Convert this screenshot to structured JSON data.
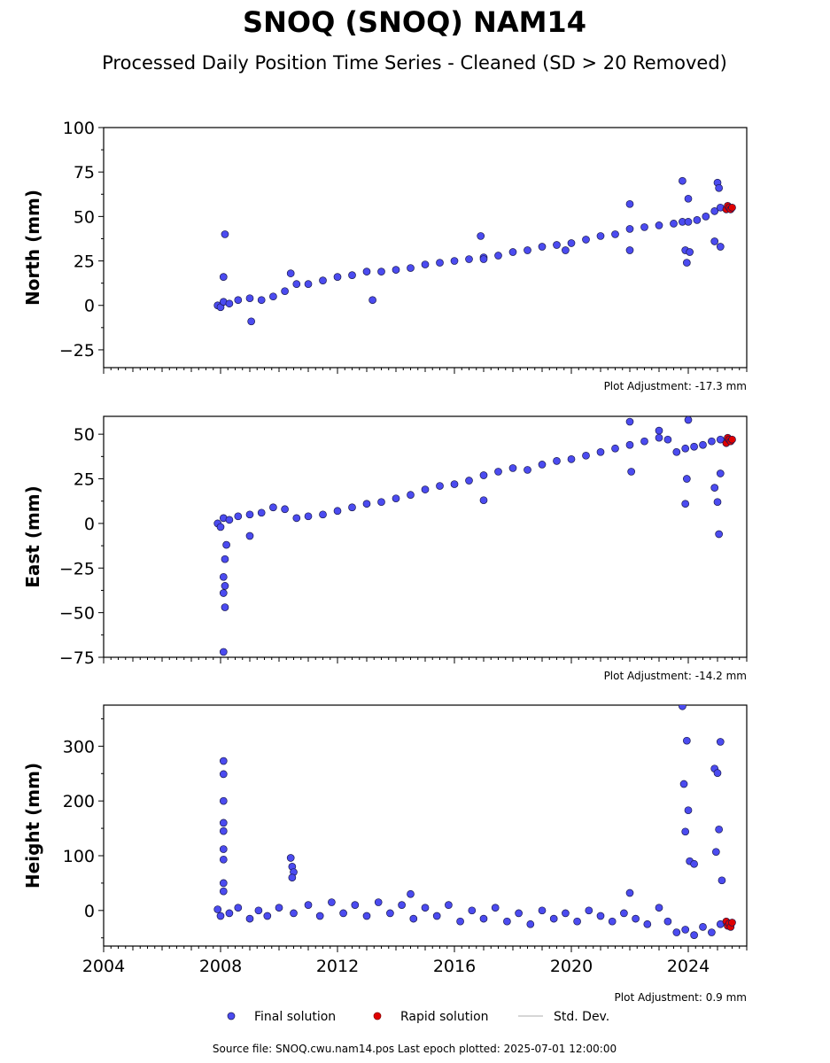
{
  "title": "SNOQ (SNOQ) NAM14",
  "subtitle": "Processed Daily Position Time Series - Cleaned (SD > 20 Removed)",
  "footer": "Source file: SNOQ.cwu.nam14.pos  Last epoch plotted: 2025-07-01 12:00:00",
  "colors": {
    "final": "#4b4bf0",
    "final_edge": "#1a1a50",
    "rapid": "#e00000",
    "std": "#c8c8c8"
  },
  "legend": [
    {
      "key": "final",
      "label": "Final solution"
    },
    {
      "key": "rapid",
      "label": "Rapid solution"
    },
    {
      "key": "std",
      "label": "Std. Dev."
    }
  ],
  "chart_data": [
    {
      "type": "scatter",
      "ylabel": "North (mm)",
      "ylim": [
        -35,
        100
      ],
      "yticks": [
        -25,
        0,
        25,
        50,
        75,
        100
      ],
      "xlim": [
        2004,
        2026
      ],
      "xticks": [
        2004,
        2008,
        2012,
        2016,
        2020,
        2024
      ],
      "show_xtick_labels": false,
      "adjustment": "Plot Adjustment: -17.3 mm",
      "series": [
        {
          "solution": "final",
          "x": [
            2007.9,
            2008.0,
            2008.1,
            2008.3,
            2008.6,
            2009.0,
            2009.4,
            2009.8,
            2010.2,
            2010.4,
            2010.6,
            2011.0,
            2011.5,
            2012.0,
            2012.5,
            2013.0,
            2013.5,
            2014.0,
            2014.5,
            2015.0,
            2015.5,
            2016.0,
            2016.5,
            2017.0,
            2017.5,
            2018.0,
            2018.5,
            2019.0,
            2019.5,
            2020.0,
            2020.5,
            2021.0,
            2021.5,
            2022.0,
            2022.5,
            2023.0,
            2023.5,
            2023.8,
            2024.0,
            2024.3,
            2024.6,
            2024.9,
            2025.1
          ],
          "y": [
            0,
            -1,
            2,
            1,
            3,
            4,
            3,
            5,
            8,
            18,
            12,
            12,
            14,
            16,
            17,
            19,
            19,
            20,
            21,
            23,
            24,
            25,
            26,
            27,
            28,
            30,
            31,
            33,
            34,
            35,
            37,
            39,
            40,
            43,
            44,
            45,
            46,
            47,
            47,
            48,
            50,
            53,
            55
          ]
        },
        {
          "solution": "final_outliers",
          "x": [
            2008.15,
            2008.1,
            2009.05,
            2013.2,
            2016.9,
            2017.0,
            2019.8,
            2022.0,
            2022.0,
            2023.8,
            2023.9,
            2023.95,
            2024.0,
            2024.05,
            2024.9,
            2025.0,
            2025.05,
            2025.1
          ],
          "y": [
            40,
            16,
            -9,
            3,
            39,
            26,
            31,
            57,
            31,
            70,
            31,
            24,
            60,
            30,
            36,
            69,
            66,
            33
          ]
        },
        {
          "solution": "rapid",
          "x": [
            2025.3,
            2025.35,
            2025.4,
            2025.45,
            2025.5
          ],
          "y": [
            54,
            56,
            55,
            54,
            55
          ]
        }
      ]
    },
    {
      "type": "scatter",
      "ylabel": "East (mm)",
      "ylim": [
        -75,
        60
      ],
      "yticks": [
        -75,
        -50,
        -25,
        0,
        25,
        50
      ],
      "xlim": [
        2004,
        2026
      ],
      "xticks": [
        2004,
        2008,
        2012,
        2016,
        2020,
        2024
      ],
      "show_xtick_labels": false,
      "adjustment": "Plot Adjustment: -14.2 mm",
      "series": [
        {
          "solution": "final",
          "x": [
            2007.9,
            2008.0,
            2008.1,
            2008.3,
            2008.6,
            2009.0,
            2009.4,
            2009.8,
            2010.2,
            2010.6,
            2011.0,
            2011.5,
            2012.0,
            2012.5,
            2013.0,
            2013.5,
            2014.0,
            2014.5,
            2015.0,
            2015.5,
            2016.0,
            2016.5,
            2017.0,
            2017.5,
            2018.0,
            2018.5,
            2019.0,
            2019.5,
            2020.0,
            2020.5,
            2021.0,
            2021.5,
            2022.0,
            2022.5,
            2023.0,
            2023.3,
            2023.6,
            2023.9,
            2024.2,
            2024.5,
            2024.8,
            2025.1
          ],
          "y": [
            0,
            -2,
            3,
            2,
            4,
            5,
            6,
            9,
            8,
            3,
            4,
            5,
            7,
            9,
            11,
            12,
            14,
            16,
            19,
            21,
            22,
            24,
            27,
            29,
            31,
            30,
            33,
            35,
            36,
            38,
            40,
            42,
            44,
            46,
            48,
            47,
            40,
            42,
            43,
            44,
            46,
            47
          ]
        },
        {
          "solution": "final_outliers",
          "x": [
            2008.1,
            2008.15,
            2008.1,
            2008.15,
            2008.1,
            2008.15,
            2008.2,
            2009.0,
            2017.0,
            2022.0,
            2022.05,
            2023.0,
            2023.9,
            2023.95,
            2024.0,
            2024.9,
            2025.0,
            2025.05,
            2025.1
          ],
          "y": [
            -72,
            -47,
            -39,
            -35,
            -30,
            -20,
            -12,
            -7,
            13,
            57,
            29,
            52,
            11,
            25,
            58,
            20,
            12,
            -6,
            28
          ]
        },
        {
          "solution": "rapid",
          "x": [
            2025.3,
            2025.35,
            2025.4,
            2025.45,
            2025.5
          ],
          "y": [
            45,
            48,
            47,
            46,
            47
          ]
        }
      ]
    },
    {
      "type": "scatter",
      "ylabel": "Height (mm)",
      "ylim": [
        -65,
        375
      ],
      "yticks": [
        0,
        100,
        200,
        300
      ],
      "xlim": [
        2004,
        2026
      ],
      "xticks": [
        2004,
        2008,
        2012,
        2016,
        2020,
        2024
      ],
      "show_xtick_labels": true,
      "adjustment": "Plot Adjustment: 0.9 mm",
      "series": [
        {
          "solution": "final",
          "x": [
            2007.9,
            2008.0,
            2008.3,
            2008.6,
            2009.0,
            2009.3,
            2009.6,
            2010.0,
            2010.5,
            2011.0,
            2011.4,
            2011.8,
            2012.2,
            2012.6,
            2013.0,
            2013.4,
            2013.8,
            2014.2,
            2014.6,
            2015.0,
            2015.4,
            2015.8,
            2016.2,
            2016.6,
            2017.0,
            2017.4,
            2017.8,
            2018.2,
            2018.6,
            2019.0,
            2019.4,
            2019.8,
            2020.2,
            2020.6,
            2021.0,
            2021.4,
            2021.8,
            2022.2,
            2022.6,
            2023.0,
            2023.3,
            2023.6,
            2023.9,
            2024.2,
            2024.5,
            2024.8,
            2025.1
          ],
          "y": [
            2,
            -10,
            -5,
            5,
            -15,
            0,
            -10,
            5,
            -5,
            10,
            -10,
            15,
            -5,
            10,
            -10,
            15,
            -5,
            10,
            -15,
            5,
            -10,
            10,
            -20,
            0,
            -15,
            5,
            -20,
            -5,
            -25,
            0,
            -15,
            -5,
            -20,
            0,
            -10,
            -20,
            -5,
            -15,
            -25,
            5,
            -20,
            -40,
            -35,
            -45,
            -30,
            -40,
            -25
          ]
        },
        {
          "solution": "final_outliers",
          "x": [
            2008.1,
            2008.1,
            2008.1,
            2008.1,
            2008.1,
            2008.1,
            2008.1,
            2008.1,
            2008.1,
            2010.4,
            2010.45,
            2010.5,
            2010.45,
            2014.5,
            2022.0,
            2023.8,
            2023.85,
            2023.9,
            2023.95,
            2024.0,
            2024.05,
            2024.2,
            2024.9,
            2024.95,
            2025.0,
            2025.05,
            2025.1,
            2025.15
          ],
          "y": [
            273,
            249,
            200,
            160,
            145,
            112,
            93,
            50,
            35,
            96,
            80,
            70,
            60,
            30,
            32,
            373,
            231,
            144,
            310,
            183,
            90,
            85,
            259,
            107,
            251,
            148,
            308,
            55
          ]
        },
        {
          "solution": "rapid",
          "x": [
            2025.3,
            2025.35,
            2025.4,
            2025.45,
            2025.5
          ],
          "y": [
            -20,
            -28,
            -24,
            -30,
            -22
          ]
        }
      ]
    }
  ]
}
